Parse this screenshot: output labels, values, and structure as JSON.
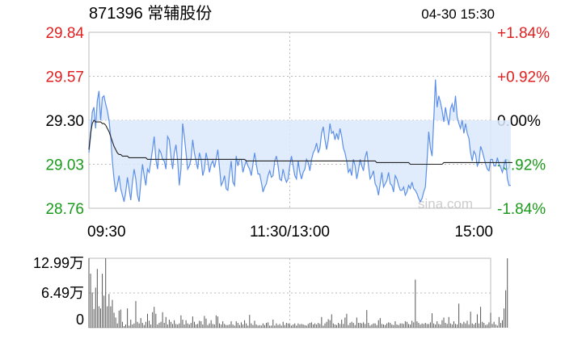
{
  "header": {
    "title": "871396 常辅股份",
    "datetime": "04-30 15:30"
  },
  "colors": {
    "up": "#e02020",
    "down": "#1a9a1a",
    "flat": "#000000",
    "price_line": "#5b8fe8",
    "price_fill": "#dbe8fb",
    "avg_line": "#222222",
    "volume_bar": "#555555",
    "grid": "#bbbbbb",
    "watermark": "#cccccc"
  },
  "watermark": "sina.com",
  "chart_data": [
    {
      "type": "line",
      "title": "871396 常辅股份",
      "y_ticks": [
        {
          "value": 29.84,
          "label": "29.84",
          "pct": "+1.84%",
          "trend": "up"
        },
        {
          "value": 29.57,
          "label": "29.57",
          "pct": "+0.92%",
          "trend": "up"
        },
        {
          "value": 29.3,
          "label": "29.30",
          "pct": "0.00%",
          "trend": "flat"
        },
        {
          "value": 29.03,
          "label": "29.03",
          "pct": "-0.92%",
          "trend": "down"
        },
        {
          "value": 28.76,
          "label": "28.76",
          "pct": "-1.84%",
          "trend": "down"
        }
      ],
      "ylim": [
        28.76,
        29.84
      ],
      "prev_close": 29.3,
      "x_ticks": [
        {
          "index": 0,
          "label": "09:30"
        },
        {
          "index": 120,
          "label": "11:30/13:00"
        },
        {
          "index": 240,
          "label": "15:00"
        }
      ],
      "grid": true,
      "series": [
        {
          "key": "price",
          "values": [
            29.1,
            29.2,
            29.35,
            29.38,
            29.25,
            29.42,
            29.48,
            29.3,
            29.44,
            29.45,
            29.4,
            29.36,
            29.3,
            29.2,
            29.05,
            28.94,
            28.86,
            28.9,
            28.96,
            28.88,
            28.84,
            28.8,
            28.86,
            28.95,
            28.88,
            28.81,
            28.92,
            29.0,
            28.94,
            28.84,
            28.8,
            28.92,
            29.03,
            28.96,
            28.9,
            29.0,
            28.98,
            29.05,
            29.12,
            29.2,
            29.06,
            29.0,
            29.12,
            29.1,
            29.06,
            29.05,
            29.0,
            29.2,
            29.18,
            29.08,
            29.0,
            29.1,
            29.15,
            29.05,
            28.9,
            29.0,
            29.28,
            29.2,
            29.1,
            29.0,
            29.02,
            29.06,
            29.18,
            29.1,
            29.05,
            29.0,
            29.1,
            29.06,
            28.96,
            29.0,
            29.1,
            29.05,
            28.98,
            29.03,
            29.05,
            29.01,
            29.06,
            29.12,
            29.01,
            28.9,
            28.92,
            28.96,
            28.88,
            28.87,
            28.97,
            29.05,
            28.92,
            28.9,
            29.08,
            29.02,
            29.06,
            29.06,
            28.98,
            29.02,
            29.05,
            29.02,
            29.0,
            28.96,
            29.03,
            29.1,
            29.03,
            28.97,
            28.97,
            28.92,
            28.86,
            28.89,
            28.91,
            28.96,
            28.99,
            28.95,
            28.96,
            29.05,
            29.08,
            29.02,
            28.94,
            28.93,
            29.0,
            28.95,
            28.92,
            28.94,
            29.02,
            29.08,
            29.02,
            28.96,
            28.94,
            29.05,
            28.98,
            28.94,
            28.98,
            29.0,
            29.06,
            29.04,
            28.99,
            29.06,
            29.1,
            29.12,
            29.16,
            29.1,
            29.13,
            29.22,
            29.26,
            29.18,
            29.12,
            29.18,
            29.28,
            29.22,
            29.23,
            29.18,
            29.22,
            29.18,
            29.25,
            29.2,
            29.13,
            29.1,
            29.05,
            28.98,
            29.0,
            28.96,
            29.06,
            29.02,
            28.94,
            28.99,
            29.06,
            29.02,
            28.99,
            29.07,
            29.11,
            29.02,
            28.94,
            28.96,
            28.99,
            28.91,
            28.89,
            28.84,
            28.91,
            28.98,
            28.89,
            28.91,
            28.93,
            28.98,
            28.91,
            28.9,
            28.86,
            28.96,
            28.94,
            28.9,
            28.87,
            28.87,
            28.89,
            28.84,
            28.86,
            28.9,
            28.88,
            28.92,
            28.88,
            28.87,
            28.85,
            28.82,
            28.8,
            28.82,
            28.86,
            28.89,
            29.05,
            29.23,
            29.13,
            29.08,
            29.3,
            29.55,
            29.38,
            29.45,
            29.41,
            29.36,
            29.29,
            29.38,
            29.32,
            29.27,
            29.37,
            29.4,
            29.35,
            29.45,
            29.32,
            29.28,
            29.25,
            29.3,
            29.22,
            29.28,
            29.22,
            29.19,
            29.1,
            29.05,
            29.11,
            29.09,
            29.02,
            29.04,
            29.14,
            29.11,
            29.07,
            29.03,
            29.0,
            28.99,
            29.06,
            29.06,
            29.02,
            29.02,
            29.07,
            29.03,
            29.01,
            28.98,
            29.02,
            29.06,
            28.94,
            28.9,
            28.9
          ]
        },
        {
          "key": "average",
          "values": [
            29.12,
            29.22,
            29.28,
            29.3,
            29.29,
            29.29,
            29.29,
            29.29,
            29.28,
            29.28,
            29.27,
            29.25,
            29.23,
            29.2,
            29.17,
            29.14,
            29.12,
            29.1,
            29.09,
            29.09,
            29.08,
            29.08,
            29.08,
            29.08,
            29.07,
            29.07,
            29.07,
            29.07,
            29.07,
            29.07,
            29.07,
            29.07,
            29.07,
            29.07,
            29.07,
            29.06,
            29.06,
            29.06,
            29.06,
            29.06,
            29.06,
            29.06,
            29.06,
            29.06,
            29.06,
            29.06,
            29.06,
            29.06,
            29.06,
            29.06,
            29.06,
            29.06,
            29.06,
            29.06,
            29.06,
            29.06,
            29.06,
            29.06,
            29.06,
            29.06,
            29.06,
            29.06,
            29.06,
            29.06,
            29.06,
            29.06,
            29.06,
            29.06,
            29.06,
            29.06,
            29.06,
            29.06,
            29.06,
            29.06,
            29.06,
            29.06,
            29.06,
            29.06,
            29.06,
            29.06,
            29.06,
            29.06,
            29.06,
            29.06,
            29.06,
            29.06,
            29.06,
            29.06,
            29.06,
            29.06,
            29.06,
            29.06,
            29.06,
            29.06,
            29.05,
            29.05,
            29.05,
            29.05,
            29.05,
            29.05,
            29.05,
            29.05,
            29.05,
            29.05,
            29.05,
            29.05,
            29.05,
            29.05,
            29.05,
            29.05,
            29.05,
            29.05,
            29.05,
            29.05,
            29.05,
            29.05,
            29.05,
            29.05,
            29.05,
            29.05,
            29.05,
            29.05,
            29.05,
            29.05,
            29.05,
            29.05,
            29.05,
            29.05,
            29.05,
            29.05,
            29.05,
            29.05,
            29.05,
            29.05,
            29.05,
            29.05,
            29.05,
            29.05,
            29.05,
            29.05,
            29.05,
            29.05,
            29.05,
            29.05,
            29.05,
            29.05,
            29.05,
            29.05,
            29.05,
            29.05,
            29.05,
            29.05,
            29.05,
            29.05,
            29.05,
            29.05,
            29.05,
            29.05,
            29.05,
            29.05,
            29.05,
            29.05,
            29.05,
            29.05,
            29.05,
            29.05,
            29.05,
            29.05,
            29.05,
            29.05,
            29.05,
            29.05,
            29.04,
            29.04,
            29.04,
            29.04,
            29.04,
            29.04,
            29.04,
            29.04,
            29.04,
            29.04,
            29.04,
            29.04,
            29.04,
            29.04,
            29.04,
            29.04,
            29.04,
            29.04,
            29.04,
            29.04,
            29.03,
            29.03,
            29.03,
            29.03,
            29.03,
            29.03,
            29.03,
            29.03,
            29.03,
            29.03,
            29.03,
            29.03,
            29.03,
            29.03,
            29.03,
            29.03,
            29.03,
            29.03,
            29.03,
            29.03,
            29.04,
            29.04,
            29.04,
            29.04,
            29.04,
            29.04,
            29.04,
            29.04,
            29.04,
            29.04,
            29.04,
            29.04,
            29.04,
            29.04,
            29.04,
            29.04,
            29.04,
            29.04,
            29.04,
            29.04,
            29.04,
            29.04,
            29.04,
            29.04,
            29.04,
            29.04,
            29.04,
            29.04,
            29.04,
            29.04,
            29.04,
            29.04,
            29.04,
            29.04,
            29.04,
            29.04,
            29.04,
            29.04,
            29.04,
            29.04,
            29.04,
            29.04
          ]
        }
      ]
    },
    {
      "type": "bar",
      "unit": "万",
      "y_ticks": [
        {
          "value": 12.99,
          "label": "12.99万"
        },
        {
          "value": 6.49,
          "label": "6.49万"
        },
        {
          "value": 0,
          "label": "0"
        }
      ],
      "ylim": [
        0,
        12.99
      ],
      "series": [
        {
          "key": "volume",
          "values": [
            12.99,
            10.1,
            6.6,
            3.5,
            7.5,
            11.0,
            4.0,
            3.6,
            10.1,
            6.0,
            13.8,
            4.0,
            6.3,
            4.0,
            5.2,
            2.8,
            1.9,
            0.8,
            3.2,
            3.4,
            1.1,
            0.3,
            0.6,
            3.6,
            0.4,
            1.5,
            0.6,
            0.8,
            5.0,
            1.1,
            0.8,
            1.8,
            0.9,
            0.5,
            1.1,
            2.6,
            1.3,
            0.6,
            2.9,
            3.9,
            2.6,
            0.6,
            0.9,
            1.1,
            2.9,
            0.9,
            2.0,
            0.6,
            1.5,
            1.1,
            0.7,
            1.4,
            0.7,
            0.6,
            0.8,
            2.3,
            1.5,
            0.6,
            1.4,
            0.8,
            0.6,
            0.9,
            2.1,
            1.1,
            0.6,
            0.7,
            1.3,
            1.2,
            0.6,
            2.2,
            1.7,
            0.5,
            0.8,
            1.4,
            0.7,
            0.6,
            2.3,
            2.1,
            0.8,
            0.6,
            1.2,
            0.7,
            0.5,
            0.5,
            0.6,
            1.2,
            0.6,
            0.4,
            1.2,
            0.9,
            0.5,
            1.0,
            0.6,
            1.4,
            0.8,
            0.4,
            2.4,
            0.8,
            0.5,
            1.3,
            0.6,
            0.4,
            0.5,
            0.4,
            0.8,
            0.5,
            0.9,
            1.0,
            0.4,
            0.4,
            1.5,
            0.4,
            0.8,
            0.5,
            0.7,
            0.4,
            1.1,
            0.5,
            0.9,
            0.8,
            0.7,
            0.4,
            0.6,
            0.8,
            0.4,
            0.8,
            0.6,
            0.7,
            0.6,
            0.5,
            0.4,
            0.7,
            0.9,
            1.0,
            0.6,
            0.8,
            0.6,
            0.9,
            0.7,
            2.0,
            0.4,
            0.8,
            1.1,
            1.6,
            1.4,
            2.5,
            0.8,
            0.6,
            0.5,
            0.9,
            0.7,
            1.5,
            0.7,
            1.9,
            2.6,
            0.5,
            0.9,
            1.1,
            0.9,
            0.5,
            1.9,
            0.9,
            0.9,
            0.8,
            1.0,
            0.7,
            3.3,
            0.9,
            0.4,
            0.6,
            0.8,
            0.8,
            0.5,
            1.4,
            1.8,
            0.7,
            0.6,
            0.5,
            0.8,
            1.0,
            0.9,
            0.6,
            0.5,
            1.2,
            0.6,
            0.5,
            0.8,
            0.8,
            0.7,
            1.2,
            1.1,
            0.7,
            0.6,
            1.3,
            1.0,
            9.0,
            1.2,
            0.9,
            0.6,
            0.8,
            0.7,
            0.9,
            0.7,
            0.7,
            1.0,
            2.7,
            0.8,
            0.6,
            1.2,
            0.7,
            0.6,
            1.4,
            1.9,
            0.9,
            0.7,
            2.0,
            0.8,
            0.6,
            1.2,
            0.7,
            0.6,
            4.5,
            0.9,
            0.7,
            1.1,
            0.8,
            1.3,
            0.6,
            3.0,
            0.8,
            0.6,
            0.9,
            2.5,
            0.8,
            3.9,
            1.1,
            0.9,
            0.5,
            0.6,
            1.0,
            2.8,
            0.7,
            1.1,
            0.6,
            0.4,
            2.0,
            0.9,
            1.4,
            3.6,
            7.0,
            12.99
          ]
        }
      ]
    }
  ]
}
